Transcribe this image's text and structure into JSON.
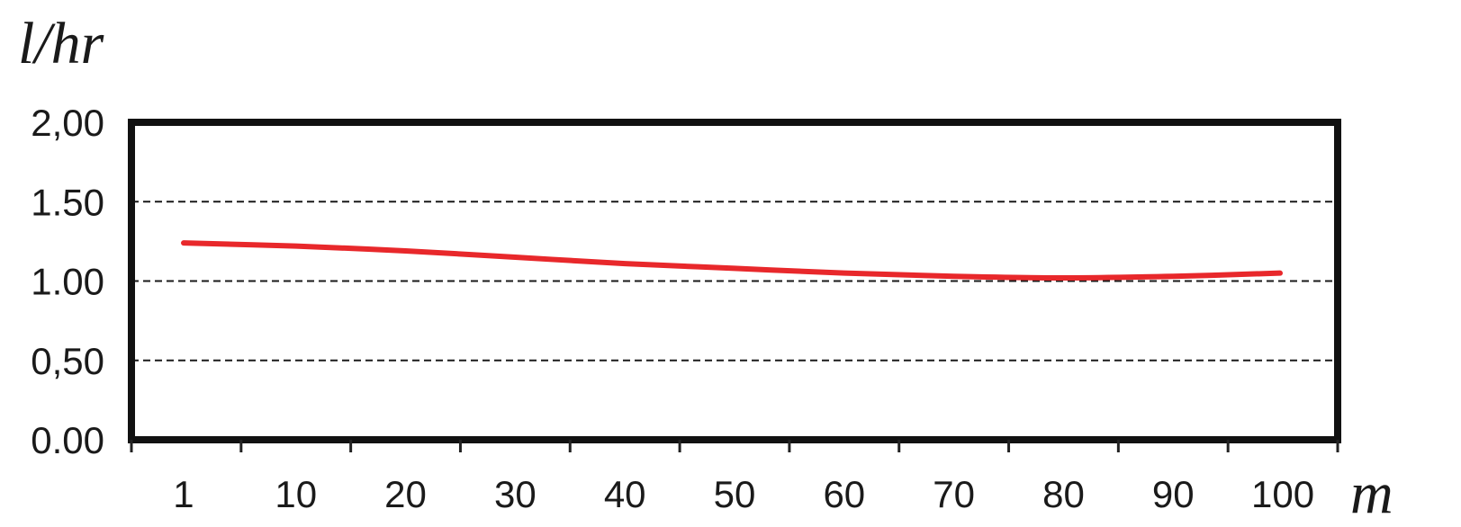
{
  "chart_data": {
    "type": "line",
    "xlabel": "m",
    "ylabel": "l/hr",
    "x": [
      1,
      10,
      20,
      30,
      40,
      50,
      60,
      70,
      80,
      90,
      100
    ],
    "x_tick_labels": [
      "1",
      "10",
      "20",
      "30",
      "40",
      "50",
      "60",
      "70",
      "80",
      "90",
      "100"
    ],
    "y_tick_labels": [
      "0.00",
      "0,50",
      "1.00",
      "1.50",
      "2,00"
    ],
    "y_ticks": [
      0,
      0.5,
      1.0,
      1.5,
      2.0
    ],
    "ylim": [
      0,
      2.0
    ],
    "grid": "horizontal dashed at 0.5, 1.0, 1.5",
    "series": [
      {
        "color": "#e8282b",
        "values": [
          1.24,
          1.22,
          1.19,
          1.15,
          1.11,
          1.08,
          1.05,
          1.03,
          1.02,
          1.03,
          1.05
        ]
      }
    ]
  }
}
